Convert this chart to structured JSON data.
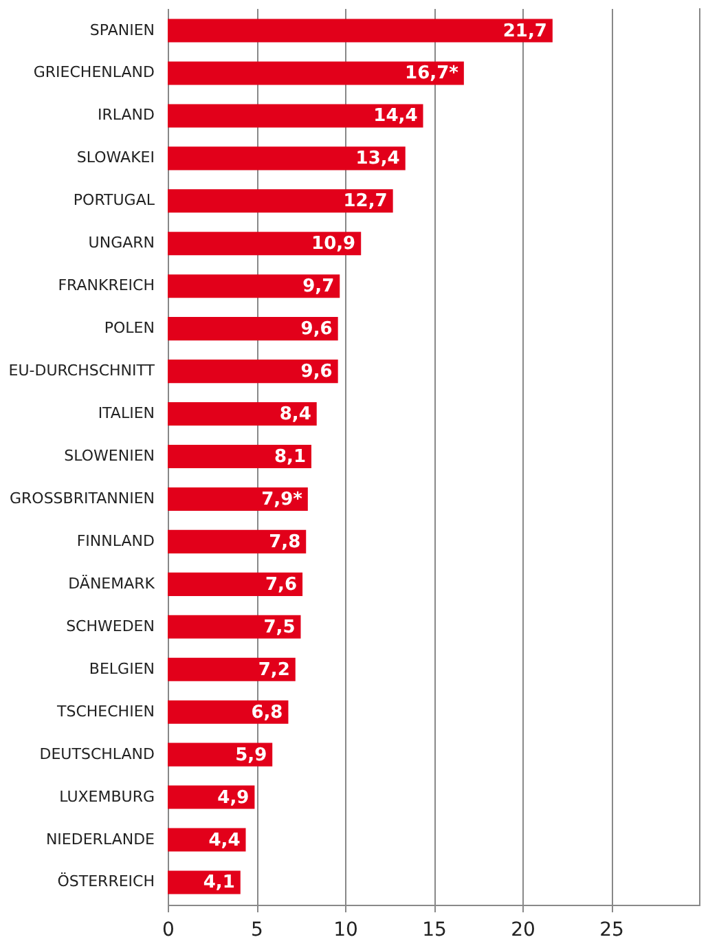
{
  "chart_data": {
    "type": "bar",
    "orientation": "horizontal",
    "categories": [
      "SPANIEN",
      "GRIECHENLAND",
      "IRLAND",
      "SLOWAKEI",
      "PORTUGAL",
      "UNGARN",
      "FRANKREICH",
      "POLEN",
      "EU-DURCHSCHNITT",
      "ITALIEN",
      "SLOWENIEN",
      "GROSSBRITANNIEN",
      "FINNLAND",
      "DÄNEMARK",
      "SCHWEDEN",
      "BELGIEN",
      "TSCHECHIEN",
      "DEUTSCHLAND",
      "LUXEMBURG",
      "NIEDERLANDE",
      "ÖSTERREICH"
    ],
    "values": [
      21.7,
      16.7,
      14.4,
      13.4,
      12.7,
      10.9,
      9.7,
      9.6,
      9.6,
      8.4,
      8.1,
      7.9,
      7.8,
      7.6,
      7.5,
      7.2,
      6.8,
      5.9,
      4.9,
      4.4,
      4.1
    ],
    "value_labels": [
      "21,7",
      "16,7*",
      "14,4",
      "13,4",
      "12,7",
      "10,9",
      "9,7",
      "9,6",
      "9,6",
      "8,4",
      "8,1",
      "7,9*",
      "7,8",
      "7,6",
      "7,5",
      "7,2",
      "6,8",
      "5,9",
      "4,9",
      "4,4",
      "4,1"
    ],
    "color": "#e2001a",
    "xlim": [
      0,
      30
    ],
    "xticks": [
      0,
      5,
      10,
      15,
      20,
      25
    ],
    "grid": "x"
  }
}
